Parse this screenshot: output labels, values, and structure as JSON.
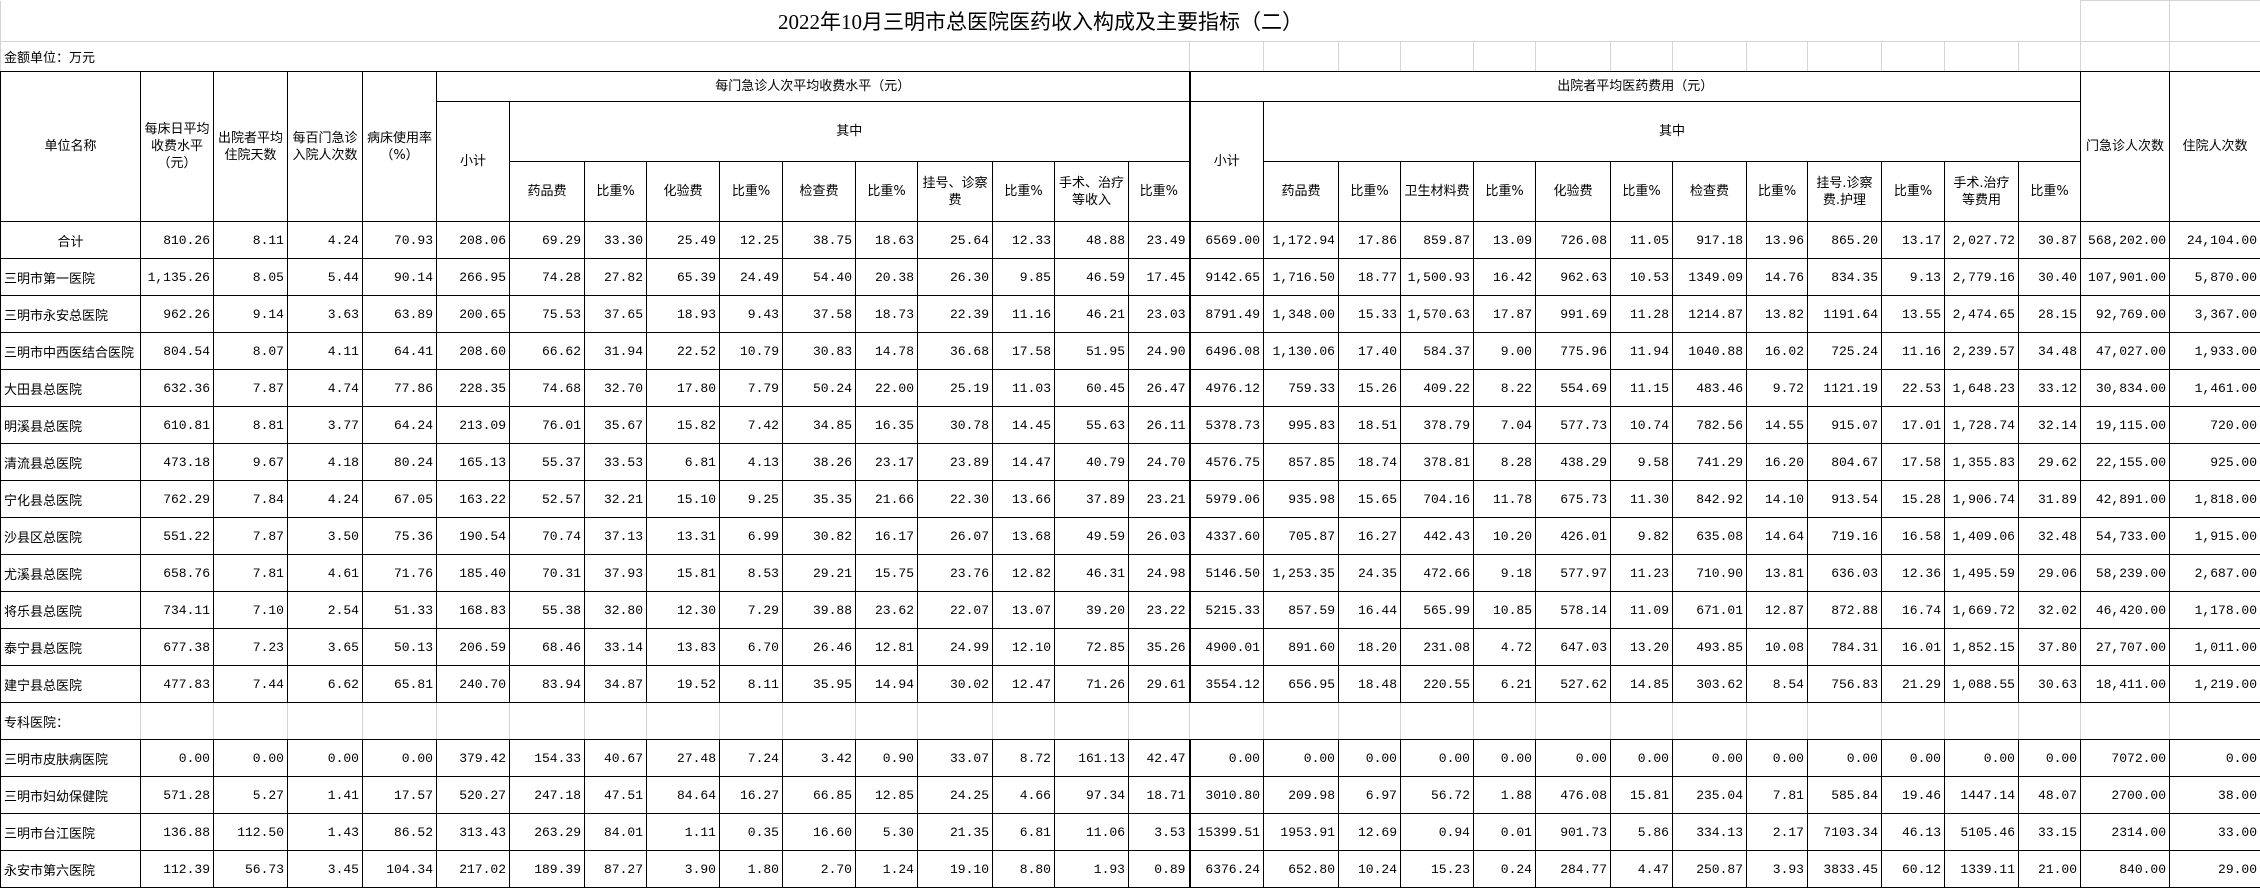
{
  "title": "2022年10月三明市总医院医药收入构成及主要指标（二）",
  "unit_label": "金额单位：万元",
  "header": {
    "unit_name": "单位名称",
    "bed_day_fee": "每床日平均收费水平（元）",
    "avg_stay": "出院者平均住院天数",
    "admission_per_100": "每百门急诊入院人次数",
    "bed_usage": "病床使用率（%）",
    "outpatient_group": "每门急诊人次平均收费水平（元）",
    "inpatient_group": "出院者平均医药费用（元）",
    "subtotal": "小计",
    "of_which": "其中",
    "outpatient_visits": "门急诊人次数",
    "inpatient_visits": "住院人次数",
    "outpatient_cols": [
      "药品费",
      "比重%",
      "化验费",
      "比重%",
      "检查费",
      "比重%",
      "挂号、诊察费",
      "比重%",
      "手术、治疗等收入",
      "比重%"
    ],
    "inpatient_cols": [
      "药品费",
      "比重%",
      "卫生材料费",
      "比重%",
      "化验费",
      "比重%",
      "检查费",
      "比重%",
      "挂号.诊察费.护理",
      "比重%",
      "手术.治疗等费用",
      "比重%"
    ]
  },
  "section_label": "专科医院：",
  "rows": [
    [
      "合计",
      "810.26",
      "8.11",
      "4.24",
      "70.93",
      "208.06",
      "69.29",
      "33.30",
      "25.49",
      "12.25",
      "38.75",
      "18.63",
      "25.64",
      "12.33",
      "48.88",
      "23.49",
      "6569.00",
      "1,172.94",
      "17.86",
      "859.87",
      "13.09",
      "726.08",
      "11.05",
      "917.18",
      "13.96",
      "865.20",
      "13.17",
      "2,027.72",
      "30.87",
      "568,202.00",
      "24,104.00"
    ],
    [
      "三明市第一医院",
      "1,135.26",
      "8.05",
      "5.44",
      "90.14",
      "266.95",
      "74.28",
      "27.82",
      "65.39",
      "24.49",
      "54.40",
      "20.38",
      "26.30",
      "9.85",
      "46.59",
      "17.45",
      "9142.65",
      "1,716.50",
      "18.77",
      "1,500.93",
      "16.42",
      "962.63",
      "10.53",
      "1349.09",
      "14.76",
      "834.35",
      "9.13",
      "2,779.16",
      "30.40",
      "107,901.00",
      "5,870.00"
    ],
    [
      "三明市永安总医院",
      "962.26",
      "9.14",
      "3.63",
      "63.89",
      "200.65",
      "75.53",
      "37.65",
      "18.93",
      "9.43",
      "37.58",
      "18.73",
      "22.39",
      "11.16",
      "46.21",
      "23.03",
      "8791.49",
      "1,348.00",
      "15.33",
      "1,570.63",
      "17.87",
      "991.69",
      "11.28",
      "1214.87",
      "13.82",
      "1191.64",
      "13.55",
      "2,474.65",
      "28.15",
      "92,769.00",
      "3,367.00"
    ],
    [
      "三明市中西医结合医院",
      "804.54",
      "8.07",
      "4.11",
      "64.41",
      "208.60",
      "66.62",
      "31.94",
      "22.52",
      "10.79",
      "30.83",
      "14.78",
      "36.68",
      "17.58",
      "51.95",
      "24.90",
      "6496.08",
      "1,130.06",
      "17.40",
      "584.37",
      "9.00",
      "775.96",
      "11.94",
      "1040.88",
      "16.02",
      "725.24",
      "11.16",
      "2,239.57",
      "34.48",
      "47,027.00",
      "1,933.00"
    ],
    [
      "大田县总医院",
      "632.36",
      "7.87",
      "4.74",
      "77.86",
      "228.35",
      "74.68",
      "32.70",
      "17.80",
      "7.79",
      "50.24",
      "22.00",
      "25.19",
      "11.03",
      "60.45",
      "26.47",
      "4976.12",
      "759.33",
      "15.26",
      "409.22",
      "8.22",
      "554.69",
      "11.15",
      "483.46",
      "9.72",
      "1121.19",
      "22.53",
      "1,648.23",
      "33.12",
      "30,834.00",
      "1,461.00"
    ],
    [
      "明溪县总医院",
      "610.81",
      "8.81",
      "3.77",
      "64.24",
      "213.09",
      "76.01",
      "35.67",
      "15.82",
      "7.42",
      "34.85",
      "16.35",
      "30.78",
      "14.45",
      "55.63",
      "26.11",
      "5378.73",
      "995.83",
      "18.51",
      "378.79",
      "7.04",
      "577.73",
      "10.74",
      "782.56",
      "14.55",
      "915.07",
      "17.01",
      "1,728.74",
      "32.14",
      "19,115.00",
      "720.00"
    ],
    [
      "清流县总医院",
      "473.18",
      "9.67",
      "4.18",
      "80.24",
      "165.13",
      "55.37",
      "33.53",
      "6.81",
      "4.13",
      "38.26",
      "23.17",
      "23.89",
      "14.47",
      "40.79",
      "24.70",
      "4576.75",
      "857.85",
      "18.74",
      "378.81",
      "8.28",
      "438.29",
      "9.58",
      "741.29",
      "16.20",
      "804.67",
      "17.58",
      "1,355.83",
      "29.62",
      "22,155.00",
      "925.00"
    ],
    [
      "宁化县总医院",
      "762.29",
      "7.84",
      "4.24",
      "67.05",
      "163.22",
      "52.57",
      "32.21",
      "15.10",
      "9.25",
      "35.35",
      "21.66",
      "22.30",
      "13.66",
      "37.89",
      "23.21",
      "5979.06",
      "935.98",
      "15.65",
      "704.16",
      "11.78",
      "675.73",
      "11.30",
      "842.92",
      "14.10",
      "913.54",
      "15.28",
      "1,906.74",
      "31.89",
      "42,891.00",
      "1,818.00"
    ],
    [
      "沙县区总医院",
      "551.22",
      "7.87",
      "3.50",
      "75.36",
      "190.54",
      "70.74",
      "37.13",
      "13.31",
      "6.99",
      "30.82",
      "16.17",
      "26.07",
      "13.68",
      "49.59",
      "26.03",
      "4337.60",
      "705.87",
      "16.27",
      "442.43",
      "10.20",
      "426.01",
      "9.82",
      "635.08",
      "14.64",
      "719.16",
      "16.58",
      "1,409.06",
      "32.48",
      "54,733.00",
      "1,915.00"
    ],
    [
      "尤溪县总医院",
      "658.76",
      "7.81",
      "4.61",
      "71.76",
      "185.40",
      "70.31",
      "37.93",
      "15.81",
      "8.53",
      "29.21",
      "15.75",
      "23.76",
      "12.82",
      "46.31",
      "24.98",
      "5146.50",
      "1,253.35",
      "24.35",
      "472.66",
      "9.18",
      "577.97",
      "11.23",
      "710.90",
      "13.81",
      "636.03",
      "12.36",
      "1,495.59",
      "29.06",
      "58,239.00",
      "2,687.00"
    ],
    [
      "将乐县总医院",
      "734.11",
      "7.10",
      "2.54",
      "51.33",
      "168.83",
      "55.38",
      "32.80",
      "12.30",
      "7.29",
      "39.88",
      "23.62",
      "22.07",
      "13.07",
      "39.20",
      "23.22",
      "5215.33",
      "857.59",
      "16.44",
      "565.99",
      "10.85",
      "578.14",
      "11.09",
      "671.01",
      "12.87",
      "872.88",
      "16.74",
      "1,669.72",
      "32.02",
      "46,420.00",
      "1,178.00"
    ],
    [
      "泰宁县总医院",
      "677.38",
      "7.23",
      "3.65",
      "50.13",
      "206.59",
      "68.46",
      "33.14",
      "13.83",
      "6.70",
      "26.46",
      "12.81",
      "24.99",
      "12.10",
      "72.85",
      "35.26",
      "4900.01",
      "891.60",
      "18.20",
      "231.08",
      "4.72",
      "647.03",
      "13.20",
      "493.85",
      "10.08",
      "784.31",
      "16.01",
      "1,852.15",
      "37.80",
      "27,707.00",
      "1,011.00"
    ],
    [
      "建宁县总医院",
      "477.83",
      "7.44",
      "6.62",
      "65.81",
      "240.70",
      "83.94",
      "34.87",
      "19.52",
      "8.11",
      "35.95",
      "14.94",
      "30.02",
      "12.47",
      "71.26",
      "29.61",
      "3554.12",
      "656.95",
      "18.48",
      "220.55",
      "6.21",
      "527.62",
      "14.85",
      "303.62",
      "8.54",
      "756.83",
      "21.29",
      "1,088.55",
      "30.63",
      "18,411.00",
      "1,219.00"
    ]
  ],
  "specialty_rows": [
    [
      "三明市皮肤病医院",
      "0.00",
      "0.00",
      "0.00",
      "0.00",
      "379.42",
      "154.33",
      "40.67",
      "27.48",
      "7.24",
      "3.42",
      "0.90",
      "33.07",
      "8.72",
      "161.13",
      "42.47",
      "0.00",
      "0.00",
      "0.00",
      "0.00",
      "0.00",
      "0.00",
      "0.00",
      "0.00",
      "0.00",
      "0.00",
      "0.00",
      "0.00",
      "0.00",
      "7072.00",
      "0.00"
    ],
    [
      "三明市妇幼保健院",
      "571.28",
      "5.27",
      "1.41",
      "17.57",
      "520.27",
      "247.18",
      "47.51",
      "84.64",
      "16.27",
      "66.85",
      "12.85",
      "24.25",
      "4.66",
      "97.34",
      "18.71",
      "3010.80",
      "209.98",
      "6.97",
      "56.72",
      "1.88",
      "476.08",
      "15.81",
      "235.04",
      "7.81",
      "585.84",
      "19.46",
      "1447.14",
      "48.07",
      "2700.00",
      "38.00"
    ],
    [
      "三明市台江医院",
      "136.88",
      "112.50",
      "1.43",
      "86.52",
      "313.43",
      "263.29",
      "84.01",
      "1.11",
      "0.35",
      "16.60",
      "5.30",
      "21.35",
      "6.81",
      "11.06",
      "3.53",
      "15399.51",
      "1953.91",
      "12.69",
      "0.94",
      "0.01",
      "901.73",
      "5.86",
      "334.13",
      "2.17",
      "7103.34",
      "46.13",
      "5105.46",
      "33.15",
      "2314.00",
      "33.00"
    ],
    [
      "永安市第六医院",
      "112.39",
      "56.73",
      "3.45",
      "104.34",
      "217.02",
      "189.39",
      "87.27",
      "3.90",
      "1.80",
      "2.70",
      "1.24",
      "19.10",
      "8.80",
      "1.93",
      "0.89",
      "6376.24",
      "652.80",
      "10.24",
      "15.23",
      "0.24",
      "284.77",
      "4.47",
      "250.87",
      "3.93",
      "3833.45",
      "60.12",
      "1339.11",
      "21.00",
      "840.00",
      "29.00"
    ]
  ]
}
